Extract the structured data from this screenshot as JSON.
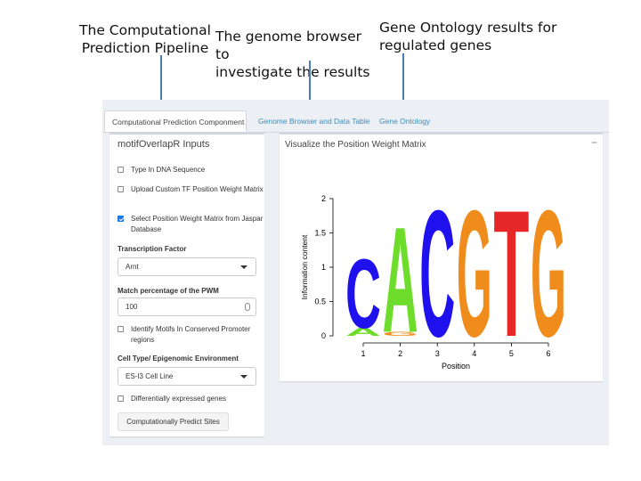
{
  "annotations": {
    "pipeline": [
      "The Computational",
      "Prediction Pipeline"
    ],
    "browser": [
      "The genome browser to",
      "investigate the results"
    ],
    "ontology": [
      "Gene Ontology results for",
      "regulated genes"
    ]
  },
  "tabs": [
    {
      "label": "Computational Prediction Componment",
      "active": true
    },
    {
      "label": "Genome Browser and Data Table",
      "active": false
    },
    {
      "label": "Gene Ontology",
      "active": false
    }
  ],
  "sidebar": {
    "title": "motifOverlapR Inputs",
    "type_dna": {
      "label": "Type In DNA Sequence",
      "checked": false
    },
    "upload_pwm": {
      "label": "Upload Custom TF Position Weight Matrix",
      "checked": false
    },
    "jaspar": {
      "label": "Select Position Weight Matrix from Jaspar Database",
      "checked": true
    },
    "tf_label": "Transcription Factor",
    "tf_value": "Arnt",
    "match_label": "Match percentage of the PWM",
    "match_value": "100",
    "conserved": {
      "label": "Identify Motifs In Conserved Promoter regions",
      "checked": false
    },
    "cell_label": "Cell Type/ Epigenomic Environment",
    "cell_value": "ES-I3 Cell Line",
    "diff_expr": {
      "label": "Differentially expressed genes",
      "checked": false
    },
    "predict_button": "Computationally Predict Sites"
  },
  "main": {
    "title": "Visualize the Position Weight Matrix",
    "collapse_symbol": "−"
  },
  "chart_data": {
    "type": "sequence-logo",
    "xlabel": "Position",
    "ylabel": "Information content",
    "ylim": [
      0,
      2
    ],
    "yticks": [
      "0",
      "0.5",
      "1",
      "1.5",
      "2"
    ],
    "xticks": [
      "1",
      "2",
      "3",
      "4",
      "5",
      "6"
    ],
    "positions": [
      {
        "position": 1,
        "letters": [
          {
            "letter": "A",
            "height": 0.12
          },
          {
            "letter": "C",
            "height": 1.05
          }
        ]
      },
      {
        "position": 2,
        "letters": [
          {
            "letter": "G",
            "height": 0.06
          },
          {
            "letter": "A",
            "height": 1.6
          }
        ]
      },
      {
        "position": 3,
        "letters": [
          {
            "letter": "C",
            "height": 1.92
          }
        ]
      },
      {
        "position": 4,
        "letters": [
          {
            "letter": "G",
            "height": 1.92
          }
        ]
      },
      {
        "position": 5,
        "letters": [
          {
            "letter": "T",
            "height": 1.92
          }
        ]
      },
      {
        "position": 6,
        "letters": [
          {
            "letter": "G",
            "height": 1.92
          }
        ]
      }
    ],
    "colors": {
      "A": "#6edc2a",
      "C": "#1f10ee",
      "G": "#f08c1c",
      "T": "#e62727"
    }
  }
}
